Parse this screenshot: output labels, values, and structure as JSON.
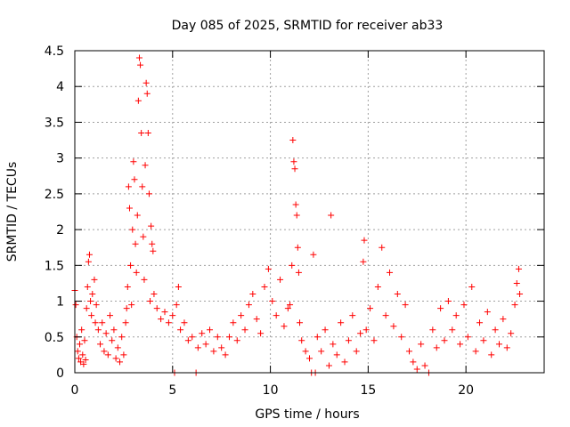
{
  "chart_data": {
    "type": "scatter",
    "title": "Day 085 of 2025, SRMTID for receiver ab33",
    "xlabel": "GPS time / hours",
    "ylabel": "SRMTID / TECUs",
    "xlim": [
      0,
      24
    ],
    "ylim": [
      0,
      4.5
    ],
    "xticks": [
      0,
      5,
      10,
      15,
      20
    ],
    "xtick_labels": [
      "0",
      "5",
      "10",
      "15",
      "20"
    ],
    "yticks": [
      0,
      0.5,
      1,
      1.5,
      2,
      2.5,
      3,
      3.5,
      4,
      4.5
    ],
    "ytick_labels": [
      "0",
      "0.5",
      "1",
      "1.5",
      "2",
      "2.5",
      "3",
      "3.5",
      "4",
      "4.5"
    ],
    "grid": true,
    "legend": "none",
    "series": [
      {
        "name": "SRMTID",
        "color": "#ff0000",
        "marker": "plus",
        "points": [
          [
            0.0,
            1.15
          ],
          [
            0.05,
            0.95
          ],
          [
            0.1,
            0.5
          ],
          [
            0.15,
            0.3
          ],
          [
            0.2,
            0.2
          ],
          [
            0.25,
            0.4
          ],
          [
            0.3,
            0.15
          ],
          [
            0.35,
            0.6
          ],
          [
            0.4,
            0.25
          ],
          [
            0.45,
            0.12
          ],
          [
            0.5,
            0.45
          ],
          [
            0.55,
            0.18
          ],
          [
            0.6,
            0.9
          ],
          [
            0.65,
            1.2
          ],
          [
            0.7,
            1.55
          ],
          [
            0.75,
            1.65
          ],
          [
            0.8,
            1.0
          ],
          [
            0.85,
            0.8
          ],
          [
            0.9,
            1.1
          ],
          [
            1.0,
            1.3
          ],
          [
            1.05,
            0.7
          ],
          [
            1.1,
            0.95
          ],
          [
            1.2,
            0.6
          ],
          [
            1.3,
            0.4
          ],
          [
            1.4,
            0.7
          ],
          [
            1.5,
            0.3
          ],
          [
            1.6,
            0.55
          ],
          [
            1.7,
            0.25
          ],
          [
            1.8,
            0.8
          ],
          [
            1.9,
            0.45
          ],
          [
            2.0,
            0.6
          ],
          [
            2.1,
            0.2
          ],
          [
            2.2,
            0.35
          ],
          [
            2.3,
            0.15
          ],
          [
            2.4,
            0.5
          ],
          [
            2.5,
            0.25
          ],
          [
            2.6,
            0.7
          ],
          [
            2.65,
            0.9
          ],
          [
            2.7,
            1.2
          ],
          [
            2.75,
            2.6
          ],
          [
            2.8,
            2.3
          ],
          [
            2.85,
            1.5
          ],
          [
            2.9,
            0.95
          ],
          [
            2.95,
            2.0
          ],
          [
            3.0,
            2.95
          ],
          [
            3.05,
            2.7
          ],
          [
            3.1,
            1.8
          ],
          [
            3.15,
            1.4
          ],
          [
            3.2,
            2.2
          ],
          [
            3.25,
            3.8
          ],
          [
            3.3,
            4.4
          ],
          [
            3.35,
            4.3
          ],
          [
            3.4,
            3.35
          ],
          [
            3.45,
            2.6
          ],
          [
            3.5,
            1.9
          ],
          [
            3.55,
            1.3
          ],
          [
            3.6,
            2.9
          ],
          [
            3.65,
            4.05
          ],
          [
            3.7,
            3.9
          ],
          [
            3.75,
            3.35
          ],
          [
            3.8,
            2.5
          ],
          [
            3.85,
            1.0
          ],
          [
            3.9,
            2.05
          ],
          [
            3.95,
            1.8
          ],
          [
            4.0,
            1.7
          ],
          [
            4.05,
            1.1
          ],
          [
            4.2,
            0.9
          ],
          [
            4.4,
            0.75
          ],
          [
            4.6,
            0.85
          ],
          [
            4.8,
            0.7
          ],
          [
            5.0,
            0.8
          ],
          [
            5.1,
            0.0
          ],
          [
            5.2,
            0.95
          ],
          [
            5.3,
            1.2
          ],
          [
            5.4,
            0.6
          ],
          [
            5.6,
            0.7
          ],
          [
            5.8,
            0.45
          ],
          [
            6.0,
            0.5
          ],
          [
            6.2,
            0.0
          ],
          [
            6.3,
            0.35
          ],
          [
            6.5,
            0.55
          ],
          [
            6.7,
            0.4
          ],
          [
            6.9,
            0.6
          ],
          [
            7.1,
            0.3
          ],
          [
            7.3,
            0.5
          ],
          [
            7.5,
            0.35
          ],
          [
            7.7,
            0.25
          ],
          [
            7.9,
            0.5
          ],
          [
            8.1,
            0.7
          ],
          [
            8.3,
            0.45
          ],
          [
            8.5,
            0.8
          ],
          [
            8.7,
            0.6
          ],
          [
            8.9,
            0.95
          ],
          [
            9.1,
            1.1
          ],
          [
            9.3,
            0.75
          ],
          [
            9.5,
            0.55
          ],
          [
            9.7,
            1.2
          ],
          [
            9.9,
            1.45
          ],
          [
            10.1,
            1.0
          ],
          [
            10.3,
            0.8
          ],
          [
            10.5,
            1.3
          ],
          [
            10.7,
            0.65
          ],
          [
            10.9,
            0.9
          ],
          [
            11.0,
            0.95
          ],
          [
            11.1,
            1.5
          ],
          [
            11.15,
            3.25
          ],
          [
            11.2,
            2.95
          ],
          [
            11.25,
            2.85
          ],
          [
            11.3,
            2.35
          ],
          [
            11.35,
            2.2
          ],
          [
            11.4,
            1.75
          ],
          [
            11.45,
            1.4
          ],
          [
            11.5,
            0.7
          ],
          [
            11.6,
            0.45
          ],
          [
            11.8,
            0.3
          ],
          [
            12.0,
            0.2
          ],
          [
            12.1,
            0.0
          ],
          [
            12.2,
            1.65
          ],
          [
            12.3,
            0.0
          ],
          [
            12.4,
            0.5
          ],
          [
            12.6,
            0.3
          ],
          [
            12.8,
            0.6
          ],
          [
            13.0,
            0.1
          ],
          [
            13.1,
            2.2
          ],
          [
            13.2,
            0.4
          ],
          [
            13.4,
            0.25
          ],
          [
            13.6,
            0.7
          ],
          [
            13.8,
            0.15
          ],
          [
            14.0,
            0.45
          ],
          [
            14.2,
            0.8
          ],
          [
            14.4,
            0.3
          ],
          [
            14.6,
            0.55
          ],
          [
            14.75,
            1.55
          ],
          [
            14.8,
            1.85
          ],
          [
            14.9,
            0.6
          ],
          [
            15.1,
            0.9
          ],
          [
            15.3,
            0.45
          ],
          [
            15.5,
            1.2
          ],
          [
            15.7,
            1.75
          ],
          [
            15.9,
            0.8
          ],
          [
            16.1,
            1.4
          ],
          [
            16.3,
            0.65
          ],
          [
            16.5,
            1.1
          ],
          [
            16.7,
            0.5
          ],
          [
            16.9,
            0.95
          ],
          [
            17.1,
            0.3
          ],
          [
            17.3,
            0.15
          ],
          [
            17.5,
            0.05
          ],
          [
            17.7,
            0.4
          ],
          [
            17.9,
            0.1
          ],
          [
            18.1,
            0.0
          ],
          [
            18.3,
            0.6
          ],
          [
            18.5,
            0.35
          ],
          [
            18.7,
            0.9
          ],
          [
            18.9,
            0.45
          ],
          [
            19.1,
            1.0
          ],
          [
            19.3,
            0.6
          ],
          [
            19.5,
            0.8
          ],
          [
            19.7,
            0.4
          ],
          [
            19.9,
            0.95
          ],
          [
            20.1,
            0.5
          ],
          [
            20.3,
            1.2
          ],
          [
            20.5,
            0.3
          ],
          [
            20.7,
            0.7
          ],
          [
            20.9,
            0.45
          ],
          [
            21.1,
            0.85
          ],
          [
            21.3,
            0.25
          ],
          [
            21.5,
            0.6
          ],
          [
            21.7,
            0.4
          ],
          [
            21.9,
            0.75
          ],
          [
            22.1,
            0.35
          ],
          [
            22.3,
            0.55
          ],
          [
            22.5,
            0.95
          ],
          [
            22.6,
            1.25
          ],
          [
            22.7,
            1.45
          ],
          [
            22.75,
            1.1
          ]
        ]
      }
    ]
  }
}
